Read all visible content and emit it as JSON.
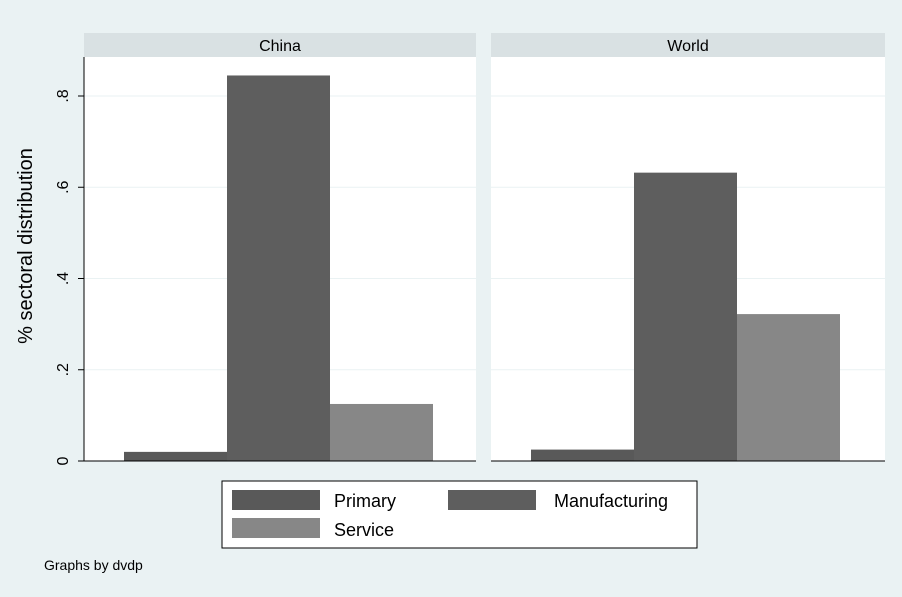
{
  "chart_data": {
    "type": "bar",
    "ylabel": "% sectoral distribution",
    "ylim": [
      0,
      0.9
    ],
    "yticks": [
      {
        "value": 0,
        "label": "0"
      },
      {
        "value": 0.2,
        "label": ".2"
      },
      {
        "value": 0.4,
        "label": ".4"
      },
      {
        "value": 0.6,
        "label": ".6"
      },
      {
        "value": 0.8,
        "label": ".8"
      }
    ],
    "grid": true,
    "legend_position": "bottom",
    "note": "Graphs by dvdp",
    "series": [
      {
        "name": "Primary",
        "color": "#595959"
      },
      {
        "name": "Manufacturing",
        "color": "#5e5e5e"
      },
      {
        "name": "Service",
        "color": "#878787"
      }
    ],
    "panels": [
      {
        "title": "China",
        "values": [
          0.02,
          0.845,
          0.125
        ]
      },
      {
        "title": "World",
        "values": [
          0.025,
          0.632,
          0.322
        ]
      }
    ]
  }
}
